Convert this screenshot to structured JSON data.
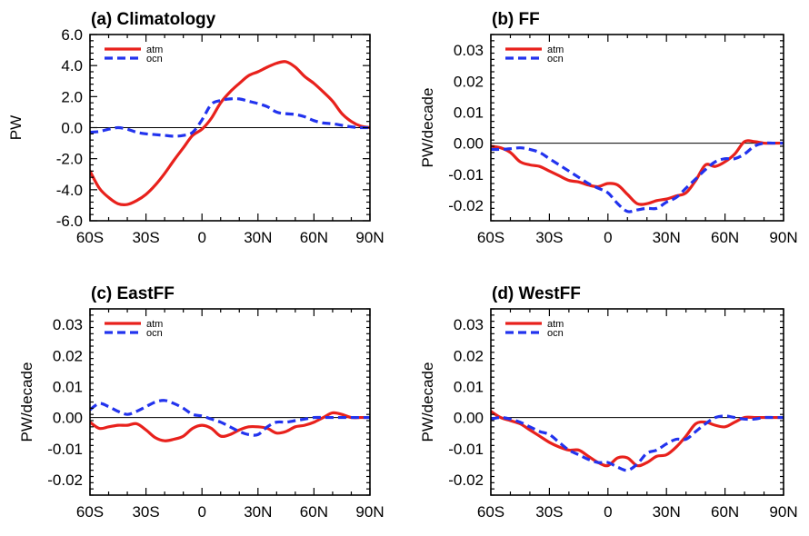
{
  "chart_data": [
    {
      "type": "line",
      "title": "(a)  Climatology",
      "xlabel": "",
      "ylabel": "PW",
      "xlim": [
        -60,
        90
      ],
      "ylim": [
        -6,
        6
      ],
      "xticks": [
        -60,
        -30,
        0,
        30,
        60,
        90
      ],
      "xtick_labels": [
        "60S",
        "30S",
        "0",
        "30N",
        "60N",
        "90N"
      ],
      "yticks": [
        -6,
        -4,
        -2,
        0,
        2,
        4,
        6
      ],
      "ytick_labels": [
        "-6.0",
        "-4.0",
        "-2.0",
        "0.0",
        "2.0",
        "4.0",
        "6.0"
      ],
      "zero_line": true,
      "legend_position": "top-left",
      "series": [
        {
          "name": "atm",
          "color": "#e8211c",
          "style": "solid",
          "x": [
            -60,
            -55,
            -50,
            -45,
            -40,
            -35,
            -30,
            -25,
            -20,
            -15,
            -10,
            -5,
            0,
            5,
            10,
            15,
            20,
            25,
            30,
            35,
            40,
            45,
            50,
            55,
            60,
            65,
            70,
            75,
            80,
            85,
            90
          ],
          "y": [
            -2.8,
            -3.9,
            -4.5,
            -4.9,
            -4.95,
            -4.7,
            -4.3,
            -3.7,
            -2.95,
            -2.1,
            -1.3,
            -0.5,
            -0.1,
            0.6,
            1.6,
            2.3,
            2.85,
            3.35,
            3.6,
            3.9,
            4.15,
            4.25,
            3.9,
            3.3,
            2.85,
            2.3,
            1.7,
            0.9,
            0.4,
            0.1,
            0.0
          ]
        },
        {
          "name": "ocn",
          "color": "#2233ee",
          "style": "dashed",
          "x": [
            -60,
            -55,
            -50,
            -45,
            -40,
            -35,
            -30,
            -25,
            -20,
            -15,
            -10,
            -5,
            0,
            5,
            10,
            15,
            20,
            25,
            30,
            35,
            40,
            45,
            50,
            55,
            60,
            65,
            70,
            75,
            80,
            85,
            90
          ],
          "y": [
            -0.3,
            -0.25,
            -0.1,
            0.0,
            -0.1,
            -0.3,
            -0.4,
            -0.45,
            -0.5,
            -0.55,
            -0.5,
            -0.3,
            0.5,
            1.5,
            1.75,
            1.85,
            1.85,
            1.7,
            1.55,
            1.35,
            1.0,
            0.9,
            0.85,
            0.7,
            0.45,
            0.3,
            0.25,
            0.15,
            0.05,
            0.0,
            0.0
          ]
        }
      ]
    },
    {
      "type": "line",
      "title": "(b)  FF",
      "xlabel": "",
      "ylabel": "PW/decade",
      "xlim": [
        -60,
        90
      ],
      "ylim": [
        -0.025,
        0.035
      ],
      "xticks": [
        -60,
        -30,
        0,
        30,
        60,
        90
      ],
      "xtick_labels": [
        "60S",
        "30S",
        "0",
        "30N",
        "60N",
        "90N"
      ],
      "yticks": [
        -0.02,
        -0.01,
        0,
        0.01,
        0.02,
        0.03
      ],
      "ytick_labels": [
        "-0.02",
        "-0.01",
        "0.00",
        "0.01",
        "0.02",
        "0.03"
      ],
      "zero_line": true,
      "legend_position": "top-left",
      "series": [
        {
          "name": "atm",
          "color": "#e8211c",
          "style": "solid",
          "x": [
            -60,
            -55,
            -50,
            -45,
            -40,
            -35,
            -30,
            -25,
            -20,
            -15,
            -10,
            -5,
            0,
            5,
            10,
            15,
            20,
            25,
            30,
            35,
            40,
            45,
            50,
            55,
            60,
            65,
            70,
            75,
            80,
            85,
            90
          ],
          "y": [
            -0.001,
            -0.0015,
            -0.003,
            -0.006,
            -0.007,
            -0.0075,
            -0.009,
            -0.0105,
            -0.012,
            -0.0125,
            -0.0135,
            -0.014,
            -0.013,
            -0.0135,
            -0.0165,
            -0.0195,
            -0.0195,
            -0.0185,
            -0.018,
            -0.017,
            -0.016,
            -0.012,
            -0.007,
            -0.0075,
            -0.006,
            -0.0035,
            0.0005,
            0.0005,
            0.0,
            0.0,
            0.0
          ]
        },
        {
          "name": "ocn",
          "color": "#2233ee",
          "style": "dashed",
          "x": [
            -60,
            -55,
            -50,
            -45,
            -40,
            -35,
            -30,
            -25,
            -20,
            -15,
            -10,
            -5,
            0,
            5,
            10,
            15,
            20,
            25,
            30,
            35,
            40,
            45,
            50,
            55,
            60,
            65,
            70,
            75,
            80,
            85,
            90
          ],
          "y": [
            -0.002,
            -0.002,
            -0.0018,
            -0.0015,
            -0.002,
            -0.003,
            -0.005,
            -0.007,
            -0.009,
            -0.011,
            -0.013,
            -0.0145,
            -0.016,
            -0.0195,
            -0.022,
            -0.0215,
            -0.021,
            -0.021,
            -0.019,
            -0.0175,
            -0.0145,
            -0.0115,
            -0.0085,
            -0.006,
            -0.005,
            -0.005,
            -0.0035,
            -0.001,
            0.0,
            0.0,
            0.0
          ]
        }
      ]
    },
    {
      "type": "line",
      "title": "(c)  EastFF",
      "xlabel": "",
      "ylabel": "PW/decade",
      "xlim": [
        -60,
        90
      ],
      "ylim": [
        -0.025,
        0.035
      ],
      "xticks": [
        -60,
        -30,
        0,
        30,
        60,
        90
      ],
      "xtick_labels": [
        "60S",
        "30S",
        "0",
        "30N",
        "60N",
        "90N"
      ],
      "yticks": [
        -0.02,
        -0.01,
        0,
        0.01,
        0.02,
        0.03
      ],
      "ytick_labels": [
        "-0.02",
        "-0.01",
        "0.00",
        "0.01",
        "0.02",
        "0.03"
      ],
      "zero_line": true,
      "legend_position": "top-left",
      "series": [
        {
          "name": "atm",
          "color": "#e8211c",
          "style": "solid",
          "x": [
            -60,
            -55,
            -50,
            -45,
            -40,
            -35,
            -30,
            -25,
            -20,
            -15,
            -10,
            -5,
            0,
            5,
            10,
            15,
            20,
            25,
            30,
            35,
            40,
            45,
            50,
            55,
            60,
            65,
            70,
            75,
            80,
            85,
            90
          ],
          "y": [
            -0.0015,
            -0.0035,
            -0.003,
            -0.0025,
            -0.0025,
            -0.002,
            -0.004,
            -0.0065,
            -0.0075,
            -0.007,
            -0.006,
            -0.0035,
            -0.0025,
            -0.0035,
            -0.006,
            -0.0055,
            -0.004,
            -0.003,
            -0.003,
            -0.0035,
            -0.005,
            -0.0045,
            -0.003,
            -0.0025,
            -0.0015,
            0.0,
            0.0015,
            0.001,
            0.0,
            0.0,
            0.0
          ]
        },
        {
          "name": "ocn",
          "color": "#2233ee",
          "style": "dashed",
          "x": [
            -60,
            -55,
            -50,
            -45,
            -40,
            -35,
            -30,
            -25,
            -20,
            -15,
            -10,
            -5,
            0,
            5,
            10,
            15,
            20,
            25,
            30,
            35,
            40,
            45,
            50,
            55,
            60,
            65,
            70,
            75,
            80,
            85,
            90
          ],
          "y": [
            0.0025,
            0.0045,
            0.0035,
            0.002,
            0.001,
            0.002,
            0.0035,
            0.005,
            0.0055,
            0.0045,
            0.003,
            0.001,
            0.0005,
            -0.0005,
            -0.0015,
            -0.003,
            -0.0045,
            -0.0055,
            -0.0055,
            -0.003,
            -0.0015,
            -0.0015,
            -0.001,
            -0.0005,
            0.0,
            0.0,
            0.0,
            0.0,
            0.0,
            0.0,
            0.0
          ]
        }
      ]
    },
    {
      "type": "line",
      "title": "(d)  WestFF",
      "xlabel": "",
      "ylabel": "PW/decade",
      "xlim": [
        -60,
        90
      ],
      "ylim": [
        -0.025,
        0.035
      ],
      "xticks": [
        -60,
        -30,
        0,
        30,
        60,
        90
      ],
      "xtick_labels": [
        "60S",
        "30S",
        "0",
        "30N",
        "60N",
        "90N"
      ],
      "yticks": [
        -0.02,
        -0.01,
        0,
        0.01,
        0.02,
        0.03
      ],
      "ytick_labels": [
        "-0.02",
        "-0.01",
        "0.00",
        "0.01",
        "0.02",
        "0.03"
      ],
      "zero_line": true,
      "legend_position": "top-left",
      "series": [
        {
          "name": "atm",
          "color": "#e8211c",
          "style": "solid",
          "x": [
            -60,
            -55,
            -50,
            -45,
            -40,
            -35,
            -30,
            -25,
            -20,
            -15,
            -10,
            -5,
            0,
            5,
            10,
            15,
            20,
            25,
            30,
            35,
            40,
            45,
            50,
            55,
            60,
            65,
            70,
            75,
            80,
            85,
            90
          ],
          "y": [
            0.002,
            0.0,
            -0.001,
            -0.002,
            -0.004,
            -0.006,
            -0.008,
            -0.0095,
            -0.0105,
            -0.0105,
            -0.0125,
            -0.0145,
            -0.0155,
            -0.013,
            -0.013,
            -0.0155,
            -0.0145,
            -0.0125,
            -0.012,
            -0.0095,
            -0.006,
            -0.002,
            -0.0015,
            -0.0025,
            -0.003,
            -0.0015,
            0.0,
            0.0,
            0.0,
            0.0,
            0.0
          ]
        },
        {
          "name": "ocn",
          "color": "#2233ee",
          "style": "dashed",
          "x": [
            -60,
            -55,
            -50,
            -45,
            -40,
            -35,
            -30,
            -25,
            -20,
            -15,
            -10,
            -5,
            0,
            5,
            10,
            15,
            20,
            25,
            30,
            35,
            40,
            45,
            50,
            55,
            60,
            65,
            70,
            75,
            80,
            85,
            90
          ],
          "y": [
            -0.0005,
            0.0,
            -0.0005,
            -0.0015,
            -0.003,
            -0.0045,
            -0.0055,
            -0.008,
            -0.0105,
            -0.012,
            -0.0135,
            -0.0145,
            -0.0145,
            -0.016,
            -0.017,
            -0.015,
            -0.0115,
            -0.0105,
            -0.0085,
            -0.007,
            -0.007,
            -0.0045,
            -0.002,
            0.0,
            0.0005,
            0.0,
            -0.0005,
            -0.0005,
            0.0,
            0.0,
            0.0
          ]
        }
      ]
    }
  ]
}
